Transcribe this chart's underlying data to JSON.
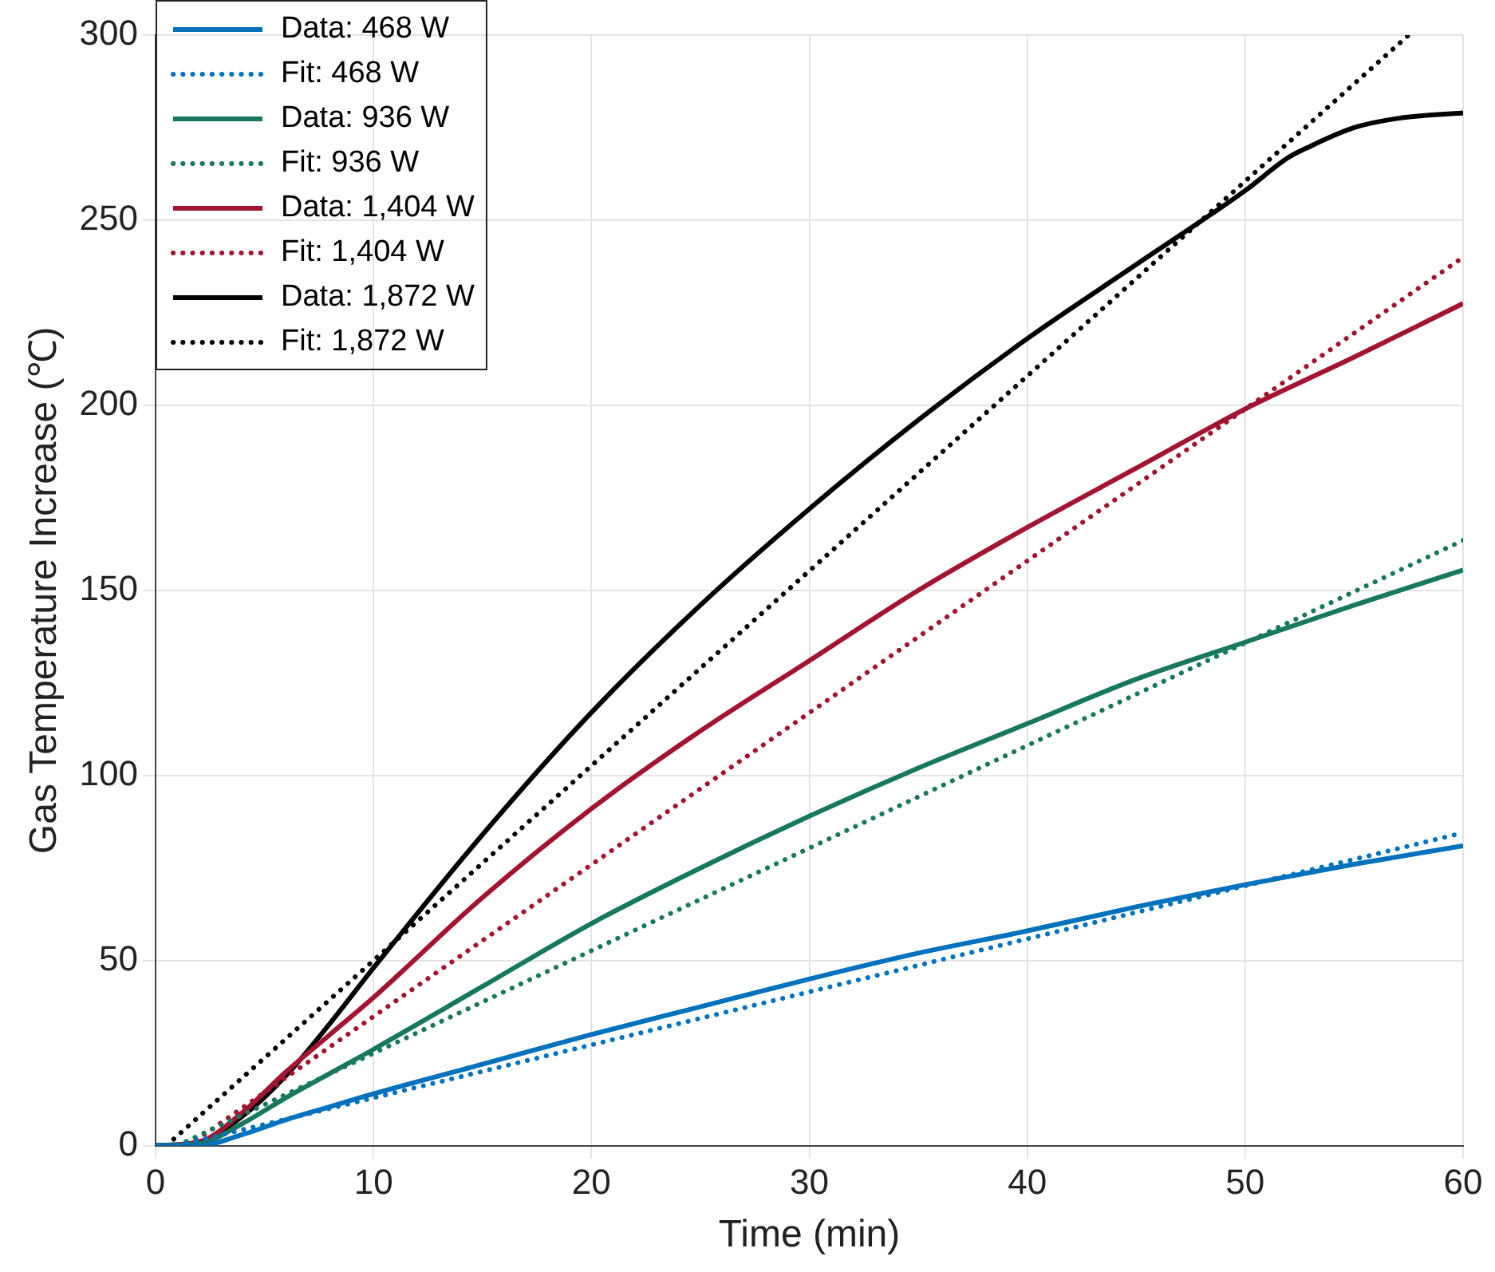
{
  "chart_data": {
    "type": "line",
    "xlabel": "Time (min)",
    "ylabel": "Gas Temperature Increase (℃)",
    "xlim": [
      0,
      60
    ],
    "ylim": [
      0,
      300
    ],
    "xticks": [
      0,
      10,
      20,
      30,
      40,
      50,
      60
    ],
    "yticks": [
      0,
      50,
      100,
      150,
      200,
      250,
      300
    ],
    "grid": true,
    "legend": "top left",
    "marker": "none",
    "series": [
      {
        "name": "Data: 468 W",
        "color": "#0072bd",
        "line_style": "solid",
        "x": [
          0,
          2,
          4,
          6,
          8,
          10,
          15,
          20,
          25,
          30,
          35,
          40,
          45,
          50,
          55,
          60
        ],
        "values": [
          0,
          0,
          3,
          7,
          10.5,
          14,
          22,
          30,
          37.5,
          45,
          52,
          58,
          64.5,
          70.5,
          76,
          81
        ]
      },
      {
        "name": "Fit: 468 W",
        "color": "#0072bd",
        "line_style": "dotted",
        "x": [
          1,
          60
        ],
        "values": [
          0,
          84.5
        ]
      },
      {
        "name": "Data: 936 W",
        "color": "#17785f",
        "line_style": "solid",
        "x": [
          0,
          2,
          4,
          6,
          8,
          10,
          15,
          20,
          25,
          30,
          35,
          40,
          45,
          50,
          55,
          60
        ],
        "values": [
          0,
          0.5,
          6,
          13,
          19.5,
          26,
          43,
          60,
          75,
          89,
          102,
          114,
          126,
          136,
          146,
          155.5
        ]
      },
      {
        "name": "Fit: 936 W",
        "color": "#17785f",
        "line_style": "dotted",
        "x": [
          1,
          60
        ],
        "values": [
          0,
          163.5
        ]
      },
      {
        "name": "Data: 1,404 W",
        "color": "#a2142f",
        "line_style": "solid",
        "x": [
          0,
          2,
          4,
          6,
          8,
          10,
          15,
          20,
          25,
          30,
          35,
          40,
          45,
          50,
          55,
          60
        ],
        "values": [
          0,
          1,
          9,
          20,
          30,
          40,
          67,
          91,
          112,
          131,
          150,
          167,
          183,
          199,
          213,
          227.5
        ]
      },
      {
        "name": "Fit: 1,404 W",
        "color": "#a2142f",
        "line_style": "dotted",
        "x": [
          1.5,
          60
        ],
        "values": [
          0,
          240
        ]
      },
      {
        "name": "Data: 1,872 W",
        "color": "#000000",
        "line_style": "solid",
        "x": [
          0,
          2,
          4,
          6,
          8,
          10,
          15,
          20,
          25,
          30,
          35,
          40,
          45,
          50,
          52,
          53,
          55,
          57,
          60
        ],
        "values": [
          0,
          1,
          8,
          19,
          33,
          48,
          84,
          117,
          146,
          172,
          196,
          218,
          238,
          258,
          267,
          270,
          275,
          277.5,
          279
        ]
      },
      {
        "name": "Fit: 1,872 W",
        "color": "#000000",
        "line_style": "dotted",
        "x": [
          0.5,
          57.5
        ],
        "values": [
          0,
          300
        ]
      }
    ]
  }
}
